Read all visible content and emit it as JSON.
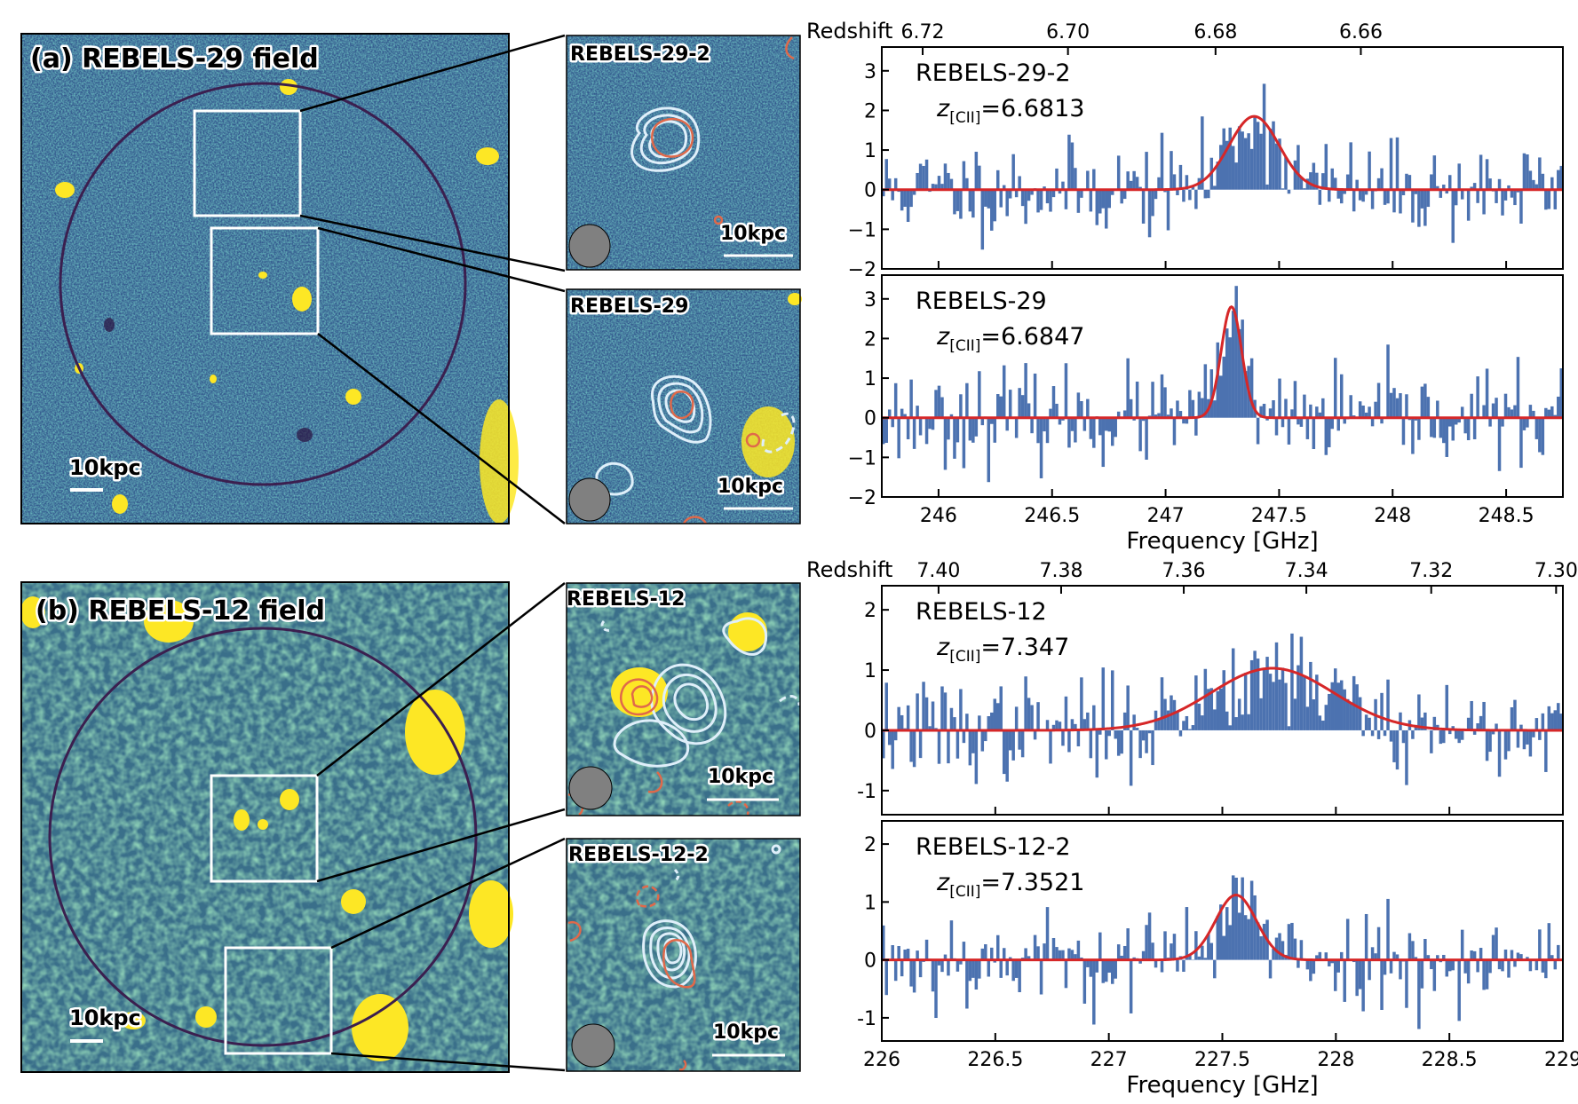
{
  "figure": {
    "panels": [
      {
        "id": "a",
        "title": "(a) REBELS-29 field",
        "scale_bar": "10kpc",
        "insets": [
          {
            "title": "REBELS-29-2",
            "scale_bar": "10kpc"
          },
          {
            "title": "REBELS-29",
            "scale_bar": "10kpc"
          }
        ]
      },
      {
        "id": "b",
        "title": "(b) REBELS-12 field",
        "scale_bar": "10kpc",
        "insets": [
          {
            "title": "REBELS-12",
            "scale_bar": "10kpc"
          },
          {
            "title": "REBELS-12-2",
            "scale_bar": "10kpc"
          }
        ]
      }
    ],
    "colors": {
      "bars": "#4c72b0",
      "fit": "#d62728",
      "image_low": "#3b4f8c",
      "image_mid": "#2f8f8a",
      "image_high": "#fde725",
      "circle": "#3b1f4f",
      "contour_cii": "#dfeffa",
      "contour_dust": "#e0694a",
      "beam": "#808080"
    }
  },
  "chart_data": [
    {
      "type": "bar",
      "group": "a",
      "name": "REBELS-29-2",
      "annotation_name": "REBELS-29-2",
      "annotation_z_prefix": "z",
      "annotation_z_sub": "[CII]",
      "annotation_z_value": "=6.6813",
      "xlabel": "",
      "top_axis_label": "Redshift",
      "top_ticks": [
        "6.72",
        "6.70",
        "6.68",
        "6.66"
      ],
      "top_tick_freq": [
        245.93,
        246.57,
        247.22,
        247.86
      ],
      "xlim": [
        245.75,
        248.75
      ],
      "ylim": [
        -2,
        3.6
      ],
      "yticks": [
        -2,
        -1,
        0,
        1,
        2,
        3
      ],
      "ytick_labels": [
        "−2",
        "−1",
        "0",
        "1",
        "2",
        "3"
      ],
      "xticks": [
        246,
        246.5,
        247,
        247.5,
        248,
        248.5
      ],
      "xtick_labels": [
        "246",
        "246.5",
        "247",
        "247.5",
        "248",
        "248.5"
      ],
      "show_xtick_labels": false,
      "gaussian": {
        "amp": 1.85,
        "center": 247.39,
        "sigma": 0.11
      },
      "noise_sigma": 0.6,
      "seed": 11
    },
    {
      "type": "bar",
      "group": "a",
      "name": "REBELS-29",
      "annotation_name": "REBELS-29",
      "annotation_z_prefix": "z",
      "annotation_z_sub": "[CII]",
      "annotation_z_value": "=6.6847",
      "xlabel": "Frequency [GHz]",
      "xlim": [
        245.75,
        248.75
      ],
      "ylim": [
        -2,
        3.6
      ],
      "yticks": [
        -2,
        -1,
        0,
        1,
        2,
        3
      ],
      "ytick_labels": [
        "−2",
        "−1",
        "0",
        "1",
        "2",
        "3"
      ],
      "xticks": [
        246,
        246.5,
        247,
        247.5,
        248,
        248.5
      ],
      "xtick_labels": [
        "246",
        "246.5",
        "247",
        "247.5",
        "248",
        "248.5"
      ],
      "show_xtick_labels": true,
      "gaussian": {
        "amp": 2.8,
        "center": 247.29,
        "sigma": 0.045
      },
      "noise_sigma": 0.6,
      "seed": 23
    },
    {
      "type": "bar",
      "group": "b",
      "name": "REBELS-12",
      "annotation_name": "REBELS-12",
      "annotation_z_prefix": "z",
      "annotation_z_sub": "[CII]",
      "annotation_z_value": "=7.347",
      "xlabel": "",
      "top_axis_label": "Redshift",
      "top_ticks": [
        "7.40",
        "7.38",
        "7.36",
        "7.34",
        "7.32",
        "7.30"
      ],
      "top_tick_freq": [
        226.25,
        226.79,
        227.33,
        227.87,
        228.42,
        228.97
      ],
      "xlim": [
        226,
        229
      ],
      "ylim": [
        -1.4,
        2.4
      ],
      "yticks": [
        -1,
        0,
        1,
        2
      ],
      "ytick_labels": [
        "-1",
        "0",
        "1",
        "2"
      ],
      "xticks": [
        226,
        226.5,
        227,
        227.5,
        228,
        228.5,
        229
      ],
      "xtick_labels": [
        "226",
        "226.5",
        "227",
        "227.5",
        "228",
        "228.5",
        "229"
      ],
      "show_xtick_labels": false,
      "gaussian": {
        "amp": 1.03,
        "center": 227.72,
        "sigma": 0.27
      },
      "noise_sigma": 0.42,
      "seed": 37
    },
    {
      "type": "bar",
      "group": "b",
      "name": "REBELS-12-2",
      "annotation_name": "REBELS-12-2",
      "annotation_z_prefix": "z",
      "annotation_z_sub": "[CII]",
      "annotation_z_value": "=7.3521",
      "xlabel": "Frequency [GHz]",
      "xlim": [
        226,
        229
      ],
      "ylim": [
        -1.4,
        2.4
      ],
      "yticks": [
        -1,
        0,
        1,
        2
      ],
      "ytick_labels": [
        "-1",
        "0",
        "1",
        "2"
      ],
      "xticks": [
        226,
        226.5,
        227,
        227.5,
        228,
        228.5,
        229
      ],
      "xtick_labels": [
        "226",
        "226.5",
        "227",
        "227.5",
        "228",
        "228.5",
        "229"
      ],
      "show_xtick_labels": true,
      "gaussian": {
        "amp": 1.12,
        "center": 227.56,
        "sigma": 0.09
      },
      "noise_sigma": 0.42,
      "seed": 53
    }
  ]
}
